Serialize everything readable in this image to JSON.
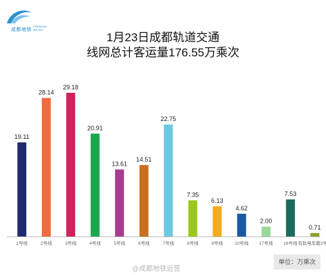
{
  "brand": {
    "name_cn": "成都地铁",
    "name_en": "CHENGDU METRO"
  },
  "title_line1": "1月23日成都轨道交通",
  "title_line2": "线网总计客运量176.55万乘次",
  "watermark": "@成都地铁运营",
  "unit_label": "单位：万乘次",
  "chart_data": {
    "type": "bar",
    "categories": [
      "1号线",
      "2号线",
      "3号线",
      "4号线",
      "5号线",
      "6号线",
      "7号线",
      "8号线",
      "9号线",
      "10号线",
      "17号线",
      "18号线",
      "有轨电车蓉2号线"
    ],
    "values": [
      19.11,
      28.14,
      29.18,
      20.91,
      13.61,
      14.51,
      22.75,
      7.35,
      6.13,
      4.62,
      2.0,
      7.53,
      0.71
    ],
    "labels": [
      "19.11",
      "28.14",
      "29.18",
      "20.91",
      "13.61",
      "14.51",
      "22.75",
      "7.35",
      "6.13",
      "4.62",
      "2.00",
      "7.53",
      "0.71"
    ],
    "colors": [
      "#1f2b6e",
      "#f26a3d",
      "#d3215f",
      "#1aa74f",
      "#a83a8f",
      "#c8701c",
      "#6cc9e1",
      "#9cc71c",
      "#f2aa1f",
      "#1c59a5",
      "#9ad89a",
      "#1a6b5e",
      "#8aa32a"
    ],
    "ylim": [
      0,
      31
    ],
    "grid": false
  }
}
